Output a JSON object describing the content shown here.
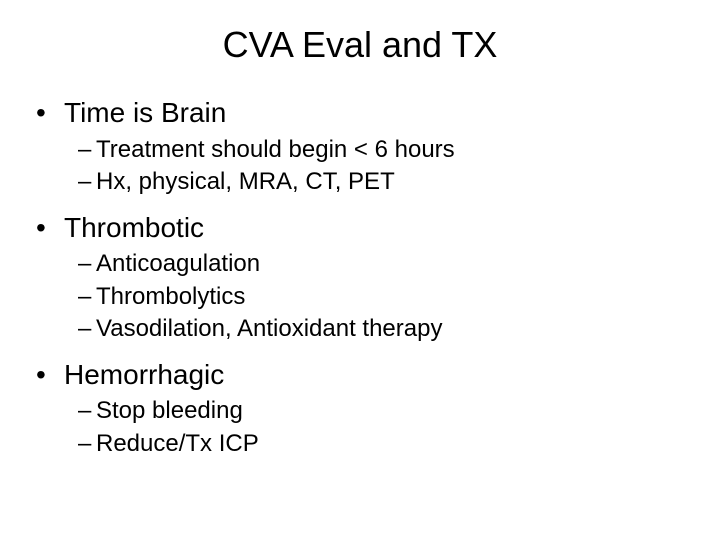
{
  "slide": {
    "title": "CVA Eval and TX",
    "title_fontsize": 36,
    "background_color": "#ffffff",
    "text_color": "#000000",
    "font_family": "Arial",
    "bullets": [
      {
        "text": "Time is Brain",
        "sub": [
          "Treatment should begin < 6 hours",
          "Hx, physical, MRA, CT, PET"
        ]
      },
      {
        "text": "Thrombotic",
        "sub": [
          "Anticoagulation",
          "Thrombolytics",
          "Vasodilation, Antioxidant therapy"
        ]
      },
      {
        "text": "Hemorrhagic",
        "sub": [
          "Stop bleeding",
          "Reduce/Tx ICP"
        ]
      }
    ],
    "level1_fontsize": 28,
    "level2_fontsize": 24,
    "bullet_char": "•",
    "dash_char": "–"
  }
}
